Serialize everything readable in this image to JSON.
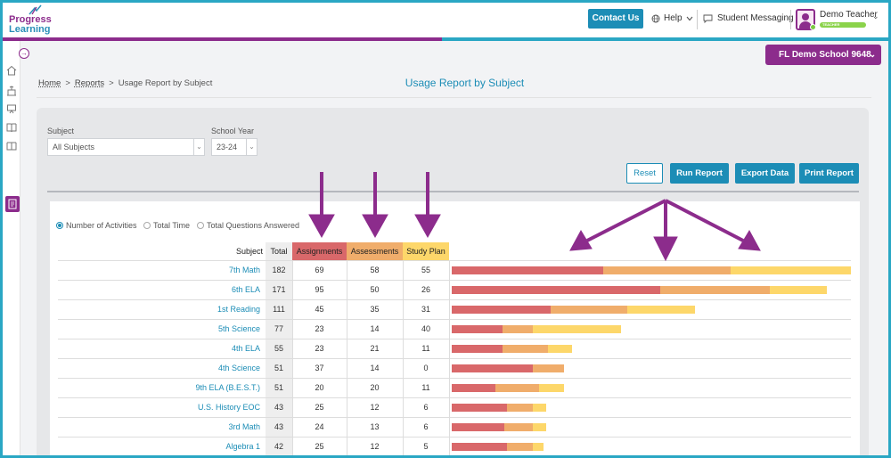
{
  "brand": {
    "line1": "Progress",
    "line2": "Learning"
  },
  "header": {
    "contact_label": "Contact Us",
    "help_label": "Help",
    "messaging_label": "Student Messaging",
    "user_name": "Demo Teacher",
    "user_role": "TEACHER"
  },
  "school_selector": {
    "label": "FL Demo School 9648"
  },
  "breadcrumb": {
    "home": "Home",
    "reports": "Reports",
    "current": "Usage Report by Subject",
    "sep": ">"
  },
  "page_title": "Usage Report by Subject",
  "filters": {
    "subject_label": "Subject",
    "subject_value": "All Subjects",
    "year_label": "School Year",
    "year_value": "23-24"
  },
  "actions": {
    "reset": "Reset",
    "run": "Run Report",
    "export": "Export Data",
    "print": "Print Report"
  },
  "metric_options": [
    {
      "label": "Number of Activities",
      "selected": true
    },
    {
      "label": "Total Time",
      "selected": false
    },
    {
      "label": "Total Questions Answered",
      "selected": false
    }
  ],
  "table": {
    "headers": {
      "subject": "Subject",
      "total": "Total",
      "assignments": "Assignments",
      "assessments": "Assessments",
      "study_plan": "Study Plan"
    },
    "colors": {
      "assignments": "#d9686a",
      "assessments": "#f0ad6b",
      "study_plan": "#fdd76a"
    }
  },
  "chart_data": {
    "type": "bar",
    "stacked": true,
    "orientation": "horizontal",
    "categories": [
      "7th Math",
      "6th ELA",
      "1st Reading",
      "5th Science",
      "4th ELA",
      "4th Science",
      "9th ELA (B.E.S.T.)",
      "U.S. History EOC",
      "3rd Math",
      "Algebra 1"
    ],
    "totals": [
      182,
      171,
      111,
      77,
      55,
      51,
      51,
      43,
      43,
      42
    ],
    "series": [
      {
        "name": "Assignments",
        "color": "#d9686a",
        "values": [
          69,
          95,
          45,
          23,
          23,
          37,
          20,
          25,
          24,
          25
        ]
      },
      {
        "name": "Assessments",
        "color": "#f0ad6b",
        "values": [
          58,
          50,
          35,
          14,
          21,
          14,
          20,
          12,
          13,
          12
        ]
      },
      {
        "name": "Study Plan",
        "color": "#fdd76a",
        "values": [
          55,
          26,
          31,
          40,
          11,
          0,
          11,
          6,
          6,
          5
        ]
      }
    ]
  }
}
